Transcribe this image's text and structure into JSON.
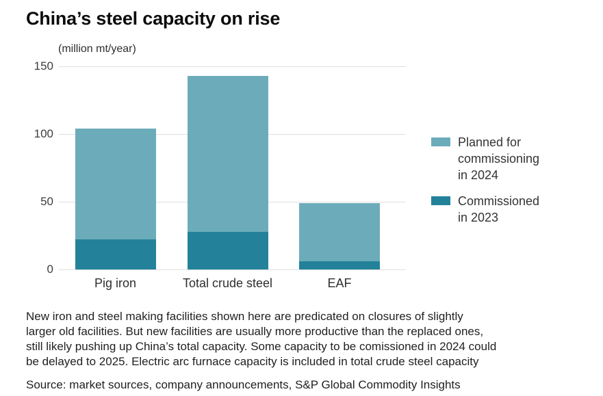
{
  "title": "China’s steel capacity on rise",
  "axis": {
    "unit_label": "(million mt/year)"
  },
  "legend": {
    "items": [
      {
        "label": "Planned for\ncommissioning\nin 2024",
        "color": "#6cacba"
      },
      {
        "label": "Commissioned\nin 2023",
        "color": "#23829a"
      }
    ]
  },
  "footnote": "New iron and steel making  facilities shown here are predicated on closures of slightly\nlarger old facilities. But new facilities are usually more productive than the replaced ones,\nstill likely pushing up China’s total capacity. Some capacity to be comissioned in 2024 could\nbe delayed to 2025. Electric arc furnace capacity is included in total crude steel capacity",
  "source": "Source: market sources, company announcements, S&P Global Commodity Insights",
  "colors": {
    "planned_2024": "#6cacba",
    "commissioned_2023": "#23829a",
    "gridline": "#dedede",
    "text": "#1f1f1f"
  },
  "chart_data": {
    "type": "bar",
    "stacked": true,
    "title": "China’s steel capacity on rise",
    "unit_label": "(million mt/year)",
    "categories": [
      "Pig iron",
      "Total crude steel",
      "EAF"
    ],
    "series": [
      {
        "name": "Commissioned in 2023",
        "color": "#23829a",
        "values": [
          22,
          28,
          6
        ]
      },
      {
        "name": "Planned for commissioning in 2024",
        "color": "#6cacba",
        "values": [
          82,
          115,
          43
        ]
      }
    ],
    "stack_totals": [
      104,
      143,
      49
    ],
    "xlabel": "",
    "ylabel": "(million mt/year)",
    "yticks": [
      0,
      50,
      100,
      150
    ],
    "ylim": [
      0,
      150
    ],
    "grid": true,
    "legend_position": "right"
  }
}
